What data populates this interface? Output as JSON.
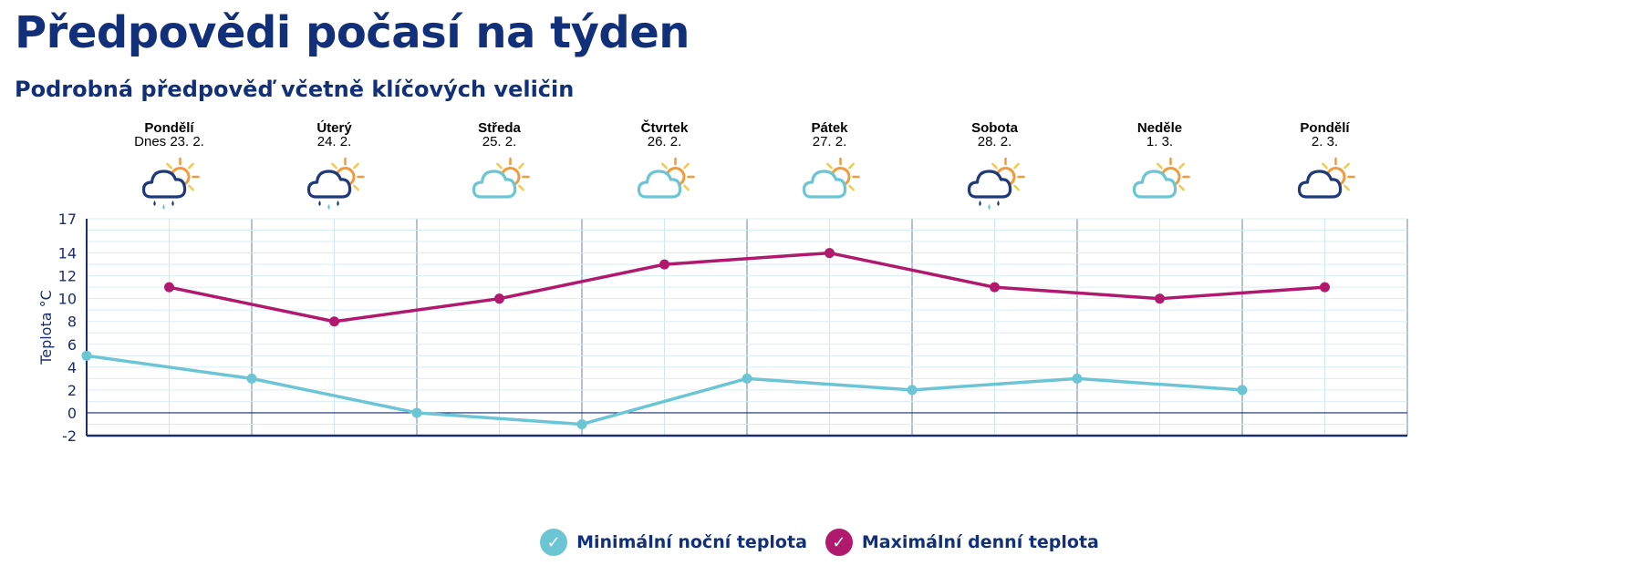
{
  "header": {
    "title": "Předpovědi počasí na týden",
    "subtitle": "Podrobná předpověď včetně klíčových veličin"
  },
  "days": [
    {
      "name": "Pondělí",
      "date": "Dnes 23. 2.",
      "icon": "cloud-rain-sun-icon"
    },
    {
      "name": "Úterý",
      "date": "24. 2.",
      "icon": "cloud-rain-sun-icon"
    },
    {
      "name": "Středa",
      "date": "25. 2.",
      "icon": "partly-cloudy-icon"
    },
    {
      "name": "Čtvrtek",
      "date": "26. 2.",
      "icon": "partly-cloudy-icon"
    },
    {
      "name": "Pátek",
      "date": "27. 2.",
      "icon": "partly-cloudy-icon"
    },
    {
      "name": "Sobota",
      "date": "28. 2.",
      "icon": "cloud-rain-sun-icon"
    },
    {
      "name": "Neděle",
      "date": "1. 3.",
      "icon": "partly-cloudy-icon"
    },
    {
      "name": "Pondělí",
      "date": "2. 3.",
      "icon": "cloudy-sun-icon"
    }
  ],
  "chart_data": {
    "type": "line",
    "ylabel": "Teplota °C",
    "ylim": [
      -2,
      17
    ],
    "yticks": [
      -2,
      0,
      2,
      4,
      6,
      8,
      10,
      12,
      14,
      17
    ],
    "grid": true,
    "legend_position": "bottom-center",
    "series": [
      {
        "name": "Minimální noční teplota",
        "color": "#6cc5d4",
        "note_x": "night points placed at midnight boundaries between days",
        "x": [
          0,
          1,
          2,
          3,
          4,
          5,
          6,
          7
        ],
        "values": [
          5,
          3,
          0,
          -1,
          3,
          2,
          3,
          2
        ]
      },
      {
        "name": "Maximální denní teplota",
        "color": "#b0196e",
        "x": [
          0,
          1,
          2,
          3,
          4,
          5,
          6,
          7
        ],
        "values": [
          11,
          8,
          10,
          13,
          14,
          11,
          10,
          11
        ]
      }
    ]
  },
  "legend": {
    "min_label": "Minimální noční teplota",
    "max_label": "Maximální denní teplota",
    "check_glyph": "✓"
  },
  "colors": {
    "min": "#6cc5d4",
    "max": "#b0196e",
    "axis": "#1a2e6e"
  }
}
